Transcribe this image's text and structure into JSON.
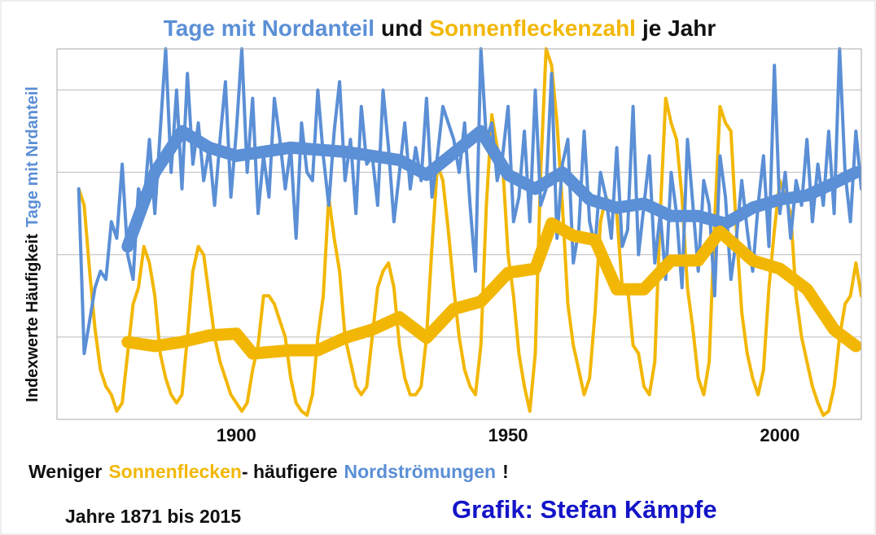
{
  "chart_data": {
    "type": "line",
    "title": [
      {
        "text": "Tage mit Nordanteil",
        "color": "#5b8fd6"
      },
      {
        "text": "und",
        "color": "#111111"
      },
      {
        "text": "Sonnenfleckenzahl",
        "color": "#f2b705"
      },
      {
        "text": "je Jahr",
        "color": "#111111"
      }
    ],
    "ylabel": [
      {
        "text": "Indexwerte Häufigkeit",
        "color": "#111111"
      },
      {
        "text": "Tage mit Nrdanteil",
        "color": "#5b8fd6"
      }
    ],
    "xlim": [
      1867,
      2015
    ],
    "xticks": [
      1900,
      1950,
      2000
    ],
    "ylim": [
      0,
      4.5
    ],
    "ygrid": [
      1,
      2,
      3,
      4
    ],
    "grid": true,
    "x": [
      1871,
      1872,
      1873,
      1874,
      1875,
      1876,
      1877,
      1878,
      1879,
      1880,
      1881,
      1882,
      1883,
      1884,
      1885,
      1886,
      1887,
      1888,
      1889,
      1890,
      1891,
      1892,
      1893,
      1894,
      1895,
      1896,
      1897,
      1898,
      1899,
      1900,
      1901,
      1902,
      1903,
      1904,
      1905,
      1906,
      1907,
      1908,
      1909,
      1910,
      1911,
      1912,
      1913,
      1914,
      1915,
      1916,
      1917,
      1918,
      1919,
      1920,
      1921,
      1922,
      1923,
      1924,
      1925,
      1926,
      1927,
      1928,
      1929,
      1930,
      1931,
      1932,
      1933,
      1934,
      1935,
      1936,
      1937,
      1938,
      1939,
      1940,
      1941,
      1942,
      1943,
      1944,
      1945,
      1946,
      1947,
      1948,
      1949,
      1950,
      1951,
      1952,
      1953,
      1954,
      1955,
      1956,
      1957,
      1958,
      1959,
      1960,
      1961,
      1962,
      1963,
      1964,
      1965,
      1966,
      1967,
      1968,
      1969,
      1970,
      1971,
      1972,
      1973,
      1974,
      1975,
      1976,
      1977,
      1978,
      1979,
      1980,
      1981,
      1982,
      1983,
      1984,
      1985,
      1986,
      1987,
      1988,
      1989,
      1990,
      1991,
      1992,
      1993,
      1994,
      1995,
      1996,
      1997,
      1998,
      1999,
      2000,
      2001,
      2002,
      2003,
      2004,
      2005,
      2006,
      2007,
      2008,
      2009,
      2010,
      2011,
      2012,
      2013,
      2014,
      2015
    ],
    "series": [
      {
        "color": "#f2b705",
        "values": [
          2.8,
          2.6,
          1.8,
          1.1,
          0.6,
          0.4,
          0.3,
          0.1,
          0.2,
          0.8,
          1.4,
          1.6,
          2.1,
          1.9,
          1.5,
          0.8,
          0.5,
          0.3,
          0.2,
          0.3,
          1.0,
          1.8,
          2.1,
          2.0,
          1.5,
          1.0,
          0.7,
          0.5,
          0.3,
          0.2,
          0.1,
          0.2,
          0.6,
          0.9,
          1.5,
          1.5,
          1.4,
          1.2,
          1.0,
          0.5,
          0.2,
          0.1,
          0.05,
          0.3,
          1.0,
          1.5,
          2.7,
          2.2,
          1.8,
          1.0,
          0.7,
          0.4,
          0.3,
          0.4,
          1.0,
          1.6,
          1.8,
          1.9,
          1.6,
          0.9,
          0.5,
          0.3,
          0.3,
          0.4,
          1.0,
          2.1,
          3.1,
          2.9,
          2.3,
          1.6,
          1.0,
          0.6,
          0.4,
          0.3,
          0.9,
          2.6,
          3.7,
          3.3,
          3.1,
          2.0,
          1.5,
          0.8,
          0.4,
          0.1,
          0.8,
          3.0,
          4.5,
          4.3,
          3.6,
          2.6,
          1.4,
          0.9,
          0.6,
          0.3,
          0.5,
          1.3,
          2.4,
          2.7,
          2.6,
          2.5,
          1.6,
          1.6,
          0.9,
          0.8,
          0.4,
          0.3,
          0.7,
          2.5,
          3.9,
          3.6,
          3.4,
          2.7,
          1.6,
          1.1,
          0.5,
          0.3,
          0.7,
          2.4,
          3.8,
          3.6,
          3.5,
          2.3,
          1.3,
          0.8,
          0.5,
          0.3,
          0.6,
          1.6,
          2.3,
          2.9,
          2.7,
          2.5,
          1.5,
          1.0,
          0.7,
          0.4,
          0.2,
          0.05,
          0.1,
          0.4,
          1.0,
          1.4,
          1.5,
          1.9,
          1.5
        ]
      },
      {
        "color": "#5b8fd6",
        "values": [
          2.8,
          0.8,
          1.2,
          1.6,
          1.8,
          1.7,
          2.4,
          2.2,
          3.1,
          2.0,
          1.7,
          2.8,
          2.6,
          3.4,
          2.5,
          3.5,
          4.5,
          3.0,
          4.0,
          2.8,
          4.2,
          3.1,
          3.6,
          2.9,
          3.3,
          2.6,
          3.4,
          4.1,
          2.7,
          3.5,
          4.5,
          3.0,
          3.9,
          2.5,
          3.2,
          2.7,
          3.9,
          3.4,
          2.8,
          3.3,
          2.2,
          3.6,
          3.0,
          2.9,
          4.0,
          3.2,
          2.6,
          3.5,
          4.1,
          2.9,
          3.4,
          2.5,
          3.8,
          3.1,
          3.2,
          2.6,
          4.0,
          3.3,
          2.4,
          3.0,
          3.6,
          2.8,
          3.3,
          2.9,
          3.9,
          2.7,
          3.2,
          3.8,
          3.6,
          3.4,
          3.0,
          3.6,
          2.6,
          1.8,
          4.5,
          3.4,
          3.6,
          2.9,
          3.2,
          3.8,
          2.4,
          2.7,
          3.5,
          2.4,
          4.0,
          2.6,
          2.8,
          4.2,
          2.2,
          3.1,
          3.4,
          1.9,
          2.3,
          3.5,
          2.4,
          2.1,
          3.0,
          2.7,
          2.2,
          3.3,
          2.1,
          2.3,
          3.8,
          2.0,
          2.6,
          3.2,
          1.9,
          2.5,
          1.7,
          3.0,
          2.5,
          1.6,
          3.4,
          2.6,
          1.8,
          2.9,
          2.6,
          1.5,
          3.2,
          2.7,
          1.7,
          2.2,
          2.9,
          2.3,
          1.8,
          2.6,
          3.2,
          2.1,
          4.3,
          2.5,
          3.0,
          2.2,
          2.9,
          2.6,
          3.4,
          2.4,
          3.1,
          2.6,
          3.5,
          2.5,
          4.5,
          3.0,
          2.4,
          3.5,
          2.8
        ]
      },
      {
        "color": "#5b8fd6",
        "smoothed": true,
        "x": [
          1880,
          1885,
          1890,
          1895,
          1900,
          1910,
          1920,
          1930,
          1935,
          1945,
          1950,
          1955,
          1960,
          1965,
          1970,
          1975,
          1980,
          1985,
          1990,
          1995,
          2000,
          2005,
          2010,
          2014
        ],
        "values": [
          2.1,
          3.0,
          3.5,
          3.3,
          3.2,
          3.3,
          3.25,
          3.15,
          2.97,
          3.5,
          2.97,
          2.8,
          3.0,
          2.67,
          2.57,
          2.62,
          2.47,
          2.47,
          2.38,
          2.57,
          2.67,
          2.72,
          2.87,
          3.0
        ]
      },
      {
        "color": "#f2b705",
        "smoothed": true,
        "x": [
          1880,
          1885,
          1890,
          1895,
          1900,
          1903,
          1910,
          1915,
          1920,
          1925,
          1930,
          1935,
          1940,
          1945,
          1950,
          1955,
          1958,
          1962,
          1966,
          1970,
          1975,
          1980,
          1985,
          1989,
          1995,
          2000,
          2005,
          2010,
          2014
        ],
        "values": [
          0.94,
          0.89,
          0.94,
          1.02,
          1.04,
          0.8,
          0.84,
          0.84,
          0.99,
          1.09,
          1.24,
          0.99,
          1.34,
          1.43,
          1.78,
          1.83,
          2.38,
          2.23,
          2.18,
          1.58,
          1.58,
          1.93,
          1.93,
          2.28,
          1.93,
          1.83,
          1.58,
          1.09,
          0.89
        ]
      }
    ],
    "note": [
      {
        "text": "Weniger",
        "color": "#111111"
      },
      {
        "text": "Sonnenflecken",
        "color": "#f2b705"
      },
      {
        "text": "- häufigere",
        "color": "#111111"
      },
      {
        "text": "Nordströmungen",
        "color": "#5b8fd6"
      },
      {
        "text": "!",
        "color": "#111111"
      }
    ],
    "period": "Jahre 1871 bis 2015",
    "credit": "Grafik: Stefan Kämpfe"
  }
}
